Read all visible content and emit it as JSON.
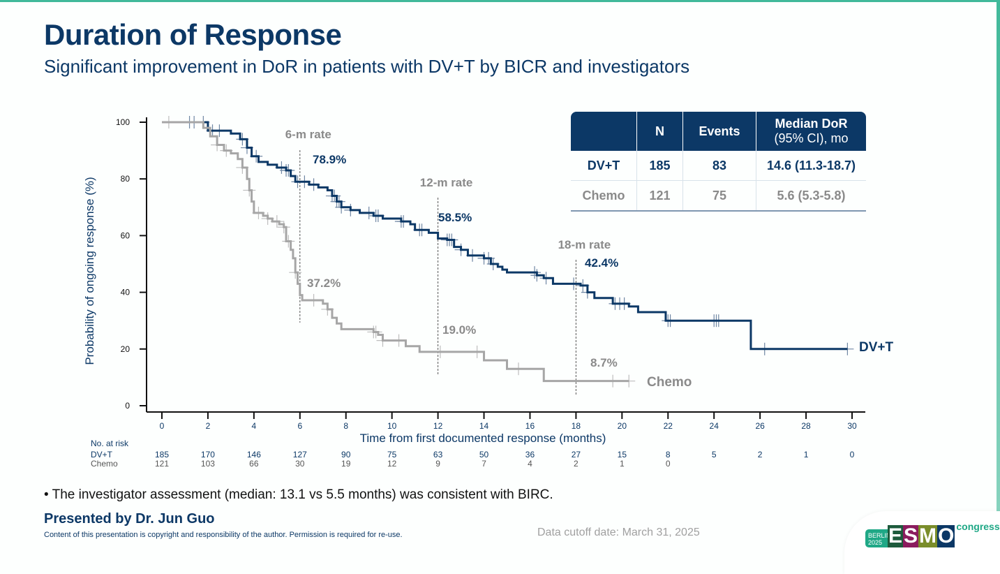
{
  "header": {
    "title": "Duration of Response",
    "subtitle": "Significant improvement in DoR in patients with DV+T by BICR and investigators"
  },
  "colors": {
    "dvt": "#0c3866",
    "chemo": "#a6a6a6",
    "accent": "#41b99a"
  },
  "stats_table": {
    "headers": [
      "",
      "N",
      "Events",
      "Median DoR\n(95% CI), mo"
    ],
    "header_line1": "Median DoR",
    "header_line2": "(95% CI), mo",
    "rows": [
      {
        "arm": "DV+T",
        "n": "185",
        "events": "83",
        "median": "14.6 (11.3-18.7)"
      },
      {
        "arm": "Chemo",
        "n": "121",
        "events": "75",
        "median": "5.6 (5.3-5.8)"
      }
    ]
  },
  "chart_data": {
    "type": "line",
    "subtype": "kaplan-meier",
    "title": "Duration of Response",
    "xlabel": "Time from first documented response (months)",
    "ylabel": "Probability of ongoing response (%)",
    "xlim": [
      0,
      30
    ],
    "ylim": [
      0,
      100
    ],
    "xticks": [
      0,
      2,
      4,
      6,
      8,
      10,
      12,
      14,
      16,
      18,
      20,
      22,
      24,
      26,
      28,
      30
    ],
    "yticks": [
      0,
      20,
      40,
      60,
      80,
      100
    ],
    "grid": false,
    "series": [
      {
        "name": "DV+T",
        "steps": [
          [
            0,
            100
          ],
          [
            1.6,
            100
          ],
          [
            2.0,
            97
          ],
          [
            3.0,
            96
          ],
          [
            3.4,
            94
          ],
          [
            3.7,
            91
          ],
          [
            3.9,
            88
          ],
          [
            4.2,
            86
          ],
          [
            4.6,
            85
          ],
          [
            5.0,
            84
          ],
          [
            5.4,
            83
          ],
          [
            5.6,
            81
          ],
          [
            5.8,
            79
          ],
          [
            6.4,
            78
          ],
          [
            6.8,
            77
          ],
          [
            7.2,
            76
          ],
          [
            7.4,
            74
          ],
          [
            7.6,
            72
          ],
          [
            7.8,
            70
          ],
          [
            8.2,
            69
          ],
          [
            8.6,
            68
          ],
          [
            9.2,
            67
          ],
          [
            9.6,
            66
          ],
          [
            10.4,
            65
          ],
          [
            10.8,
            64
          ],
          [
            11.0,
            62
          ],
          [
            11.6,
            61
          ],
          [
            12.0,
            59
          ],
          [
            12.4,
            58.5
          ],
          [
            12.7,
            56
          ],
          [
            13.0,
            55
          ],
          [
            13.3,
            53
          ],
          [
            14.0,
            52
          ],
          [
            14.3,
            50
          ],
          [
            14.6,
            49
          ],
          [
            14.8,
            48
          ],
          [
            15.0,
            47
          ],
          [
            16.3,
            46
          ],
          [
            16.6,
            45
          ],
          [
            17.0,
            43
          ],
          [
            18.2,
            42.4
          ],
          [
            18.5,
            40
          ],
          [
            18.8,
            38
          ],
          [
            19.6,
            36
          ],
          [
            20.3,
            35
          ],
          [
            20.7,
            33
          ],
          [
            21.9,
            30
          ],
          [
            25.6,
            20
          ],
          [
            29.8,
            20
          ]
        ],
        "censor_times": [
          1.2,
          1.4,
          1.8,
          2.2,
          2.5,
          3.5,
          3.7,
          4.1,
          5.2,
          5.4,
          5.5,
          5.9,
          6.2,
          6.6,
          7.4,
          7.5,
          7.6,
          7.7,
          7.8,
          8.2,
          9.0,
          9.3,
          9.4,
          10.4,
          10.5,
          11.2,
          11.3,
          12.4,
          12.5,
          12.6,
          13.0,
          13.5,
          14.0,
          14.2,
          14.4,
          16.2,
          16.3,
          16.7,
          17.9,
          18.3,
          18.5,
          19.7,
          19.9,
          20.1,
          22.0,
          22.1,
          24.0,
          24.1,
          24.2,
          26.2,
          29.8
        ],
        "label": "DV+T",
        "rates": [
          {
            "month": 6,
            "value": 78.9,
            "label": "78.9%"
          },
          {
            "month": 12,
            "value": 58.5,
            "label": "58.5%"
          },
          {
            "month": 18,
            "value": 42.4,
            "label": "42.4%"
          }
        ]
      },
      {
        "name": "Chemo",
        "steps": [
          [
            0,
            100
          ],
          [
            1.4,
            100
          ],
          [
            1.8,
            98
          ],
          [
            2.1,
            95
          ],
          [
            2.4,
            92
          ],
          [
            2.7,
            90
          ],
          [
            3.0,
            89
          ],
          [
            3.3,
            87
          ],
          [
            3.5,
            84
          ],
          [
            3.7,
            80
          ],
          [
            3.8,
            76
          ],
          [
            3.9,
            72
          ],
          [
            4.0,
            68
          ],
          [
            4.4,
            67
          ],
          [
            4.6,
            66
          ],
          [
            4.8,
            65
          ],
          [
            5.1,
            64
          ],
          [
            5.3,
            63
          ],
          [
            5.4,
            58
          ],
          [
            5.6,
            55
          ],
          [
            5.7,
            52
          ],
          [
            5.8,
            47
          ],
          [
            5.9,
            43
          ],
          [
            6.0,
            39
          ],
          [
            6.1,
            37.2
          ],
          [
            7.0,
            36
          ],
          [
            7.2,
            34
          ],
          [
            7.4,
            31
          ],
          [
            7.6,
            29
          ],
          [
            7.8,
            27
          ],
          [
            9.2,
            26
          ],
          [
            9.4,
            25
          ],
          [
            9.6,
            23
          ],
          [
            10.6,
            21
          ],
          [
            11.2,
            19
          ],
          [
            14.0,
            16
          ],
          [
            15.0,
            13
          ],
          [
            16.6,
            8.7
          ],
          [
            20.3,
            8.7
          ]
        ],
        "censor_times": [
          0.3,
          2.4,
          2.8,
          3.5,
          3.8,
          4.2,
          4.6,
          5.0,
          5.3,
          5.5,
          5.8,
          6.6,
          7.2,
          9.2,
          9.3,
          9.6,
          10.3,
          12.1,
          13.7,
          15.5,
          19.6,
          20.3
        ],
        "label": "Chemo",
        "rates": [
          {
            "month": 6,
            "value": 37.2,
            "label": "37.2%"
          },
          {
            "month": 12,
            "value": 19.0,
            "label": "19.0%"
          },
          {
            "month": 18,
            "value": 8.7,
            "label": "8.7%"
          }
        ]
      }
    ],
    "rate_markers": [
      {
        "month": 6,
        "label": "6-m rate"
      },
      {
        "month": 12,
        "label": "12-m rate"
      },
      {
        "month": 18,
        "label": "18-m rate"
      }
    ],
    "risk_table": {
      "title": "No. at risk",
      "times": [
        0,
        2,
        4,
        6,
        8,
        10,
        12,
        14,
        16,
        18,
        20,
        22,
        24,
        26,
        28,
        30
      ],
      "rows": [
        {
          "arm": "DV+T",
          "values": [
            "185",
            "170",
            "146",
            "127",
            "90",
            "75",
            "63",
            "50",
            "36",
            "27",
            "15",
            "8",
            "5",
            "2",
            "1",
            "0"
          ]
        },
        {
          "arm": "Chemo",
          "values": [
            "121",
            "103",
            "66",
            "30",
            "19",
            "12",
            "9",
            "7",
            "4",
            "2",
            "1",
            "0",
            "",
            "",
            "",
            ""
          ]
        }
      ]
    }
  },
  "footer": {
    "bullet": "• The investigator assessment (median: 13.1 vs 5.5 months) was consistent with BIRC.",
    "presenter": "Presented by Dr. Jun Guo",
    "copyright": "Content of this presentation is copyright and responsibility of the author. Permission is required for re-use.",
    "cutoff": "Data cutoff date: March 31, 2025",
    "logo": {
      "city": "BERLIN",
      "year": "2025",
      "letters": [
        "E",
        "S",
        "M",
        "O"
      ],
      "congress": "congress"
    }
  }
}
